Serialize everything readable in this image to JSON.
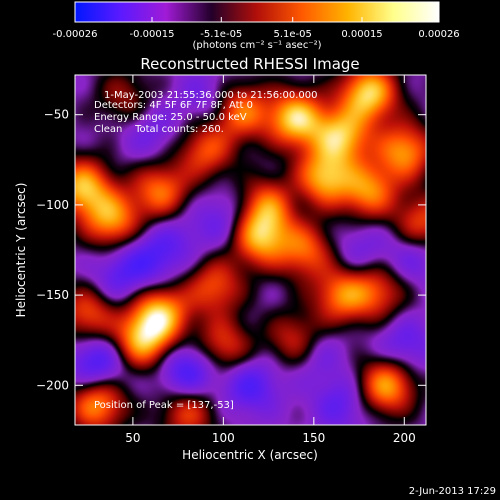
{
  "colorbar": {
    "ticks": [
      "-0.00026",
      "-0.00015",
      "-5.1e-05",
      "5.1e-05",
      "0.00015",
      "0.00026"
    ],
    "unit_label": "(photons cm⁻² s⁻¹ asec⁻²)",
    "min": -0.00026,
    "max": 0.00026,
    "colormap": [
      "#0018ff",
      "#5b1aff",
      "#a01bd6",
      "#23002a",
      "#b20f0a",
      "#ff5a00",
      "#ffb400",
      "#ffff8c",
      "#ffffff"
    ]
  },
  "chart_data": {
    "type": "heatmap",
    "title": "Reconstructed RHESSI Image",
    "xlabel": "Heliocentric X (arcsec)",
    "ylabel": "Heliocentric Y (arcsec)",
    "xlim": [
      18,
      212
    ],
    "ylim": [
      -222,
      -28
    ],
    "xticks": [
      50,
      100,
      150,
      200
    ],
    "yticks": [
      -50,
      -100,
      -150,
      -200
    ],
    "annotations": [
      "1-May-2003 21:55:36.000 to 21:56:00.000",
      "Detectors: 4F 5F 6F 7F 8F, Att 0",
      "Energy Range: 25.0 - 50.0 keV",
      "Clean    Total counts: 260."
    ],
    "peak_label": "Position of Peak = [137,-53]",
    "peak": [
      137,
      -53
    ],
    "sources": [
      {
        "x": 180,
        "y": -38,
        "v": 1.0
      },
      {
        "x": 140,
        "y": -52,
        "v": 1.0
      },
      {
        "x": 165,
        "y": -62,
        "v": 0.9
      },
      {
        "x": 155,
        "y": -85,
        "v": 0.9
      },
      {
        "x": 180,
        "y": -92,
        "v": 0.75
      },
      {
        "x": 200,
        "y": -70,
        "v": 0.8
      },
      {
        "x": 110,
        "y": -48,
        "v": 0.7
      },
      {
        "x": 90,
        "y": -70,
        "v": 0.6
      },
      {
        "x": 22,
        "y": -90,
        "v": 0.9
      },
      {
        "x": 38,
        "y": -108,
        "v": 0.8
      },
      {
        "x": 65,
        "y": -92,
        "v": 0.7
      },
      {
        "x": 120,
        "y": -118,
        "v": 0.85
      },
      {
        "x": 125,
        "y": -100,
        "v": 0.7
      },
      {
        "x": 145,
        "y": -125,
        "v": 0.65
      },
      {
        "x": 95,
        "y": -145,
        "v": 0.6
      },
      {
        "x": 65,
        "y": -160,
        "v": 0.9
      },
      {
        "x": 55,
        "y": -175,
        "v": 0.85
      },
      {
        "x": 25,
        "y": -160,
        "v": 0.6
      },
      {
        "x": 100,
        "y": -178,
        "v": 0.55
      },
      {
        "x": 140,
        "y": -175,
        "v": 0.55
      },
      {
        "x": 165,
        "y": -150,
        "v": 0.7
      },
      {
        "x": 185,
        "y": -148,
        "v": 0.55
      },
      {
        "x": 190,
        "y": -200,
        "v": 0.85
      },
      {
        "x": 30,
        "y": -210,
        "v": 0.8
      },
      {
        "x": 80,
        "y": -215,
        "v": 0.55
      },
      {
        "x": 210,
        "y": -110,
        "v": 0.6
      },
      {
        "x": 45,
        "y": -40,
        "v": 0.35
      },
      {
        "x": 60,
        "y": -130,
        "v": -0.4
      },
      {
        "x": 100,
        "y": -108,
        "v": -0.3
      },
      {
        "x": 42,
        "y": -140,
        "v": -0.35
      },
      {
        "x": 80,
        "y": -192,
        "v": -0.55
      },
      {
        "x": 115,
        "y": -200,
        "v": -0.45
      },
      {
        "x": 30,
        "y": -188,
        "v": -0.55
      },
      {
        "x": 165,
        "y": -210,
        "v": -0.35
      },
      {
        "x": 200,
        "y": -178,
        "v": -0.35
      },
      {
        "x": 150,
        "y": -182,
        "v": -0.3
      },
      {
        "x": 205,
        "y": -128,
        "v": -0.3
      },
      {
        "x": 175,
        "y": -125,
        "v": -0.25
      },
      {
        "x": 60,
        "y": -60,
        "v": -0.25
      },
      {
        "x": 90,
        "y": -40,
        "v": -0.25
      },
      {
        "x": 75,
        "y": -118,
        "v": -0.2
      },
      {
        "x": 140,
        "y": -95,
        "v": -0.15
      }
    ]
  },
  "footer": {
    "timestamp": "2-Jun-2013 17:29"
  }
}
